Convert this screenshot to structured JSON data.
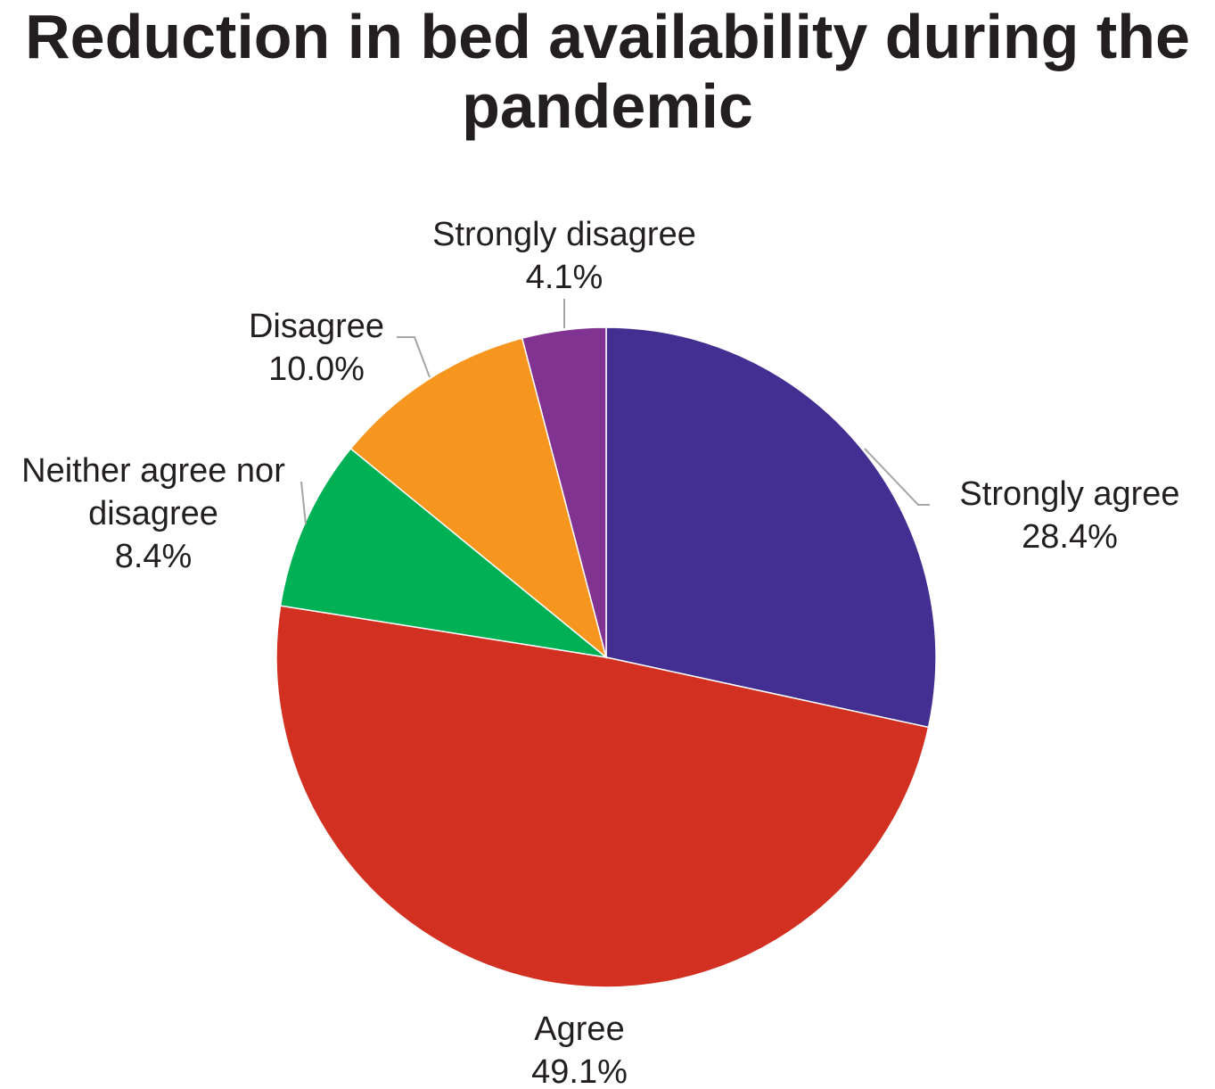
{
  "chart_data": {
    "type": "pie",
    "title_lines": [
      "Reduction in bed availability during the",
      "pandemic"
    ],
    "slices": [
      {
        "category": "Strongly agree",
        "value": 28.4,
        "label": "28.4%",
        "color": "#432f91"
      },
      {
        "category": "Agree",
        "value": 49.1,
        "label": "49.1%",
        "color": "#d23121"
      },
      {
        "category": "Neither agree nor disagree",
        "category_lines": [
          "Neither agree nor",
          "disagree"
        ],
        "value": 8.4,
        "label": "8.4%",
        "color": "#00b055"
      },
      {
        "category": "Disagree",
        "value": 10.0,
        "label": "10.0%",
        "color": "#f7961f"
      },
      {
        "category": "Strongly disagree",
        "value": 4.1,
        "label": "4.1%",
        "color": "#813391"
      }
    ],
    "start_angle": "12 o'clock",
    "direction": "clockwise",
    "legend": "none",
    "label_style": "outside with leader lines"
  }
}
